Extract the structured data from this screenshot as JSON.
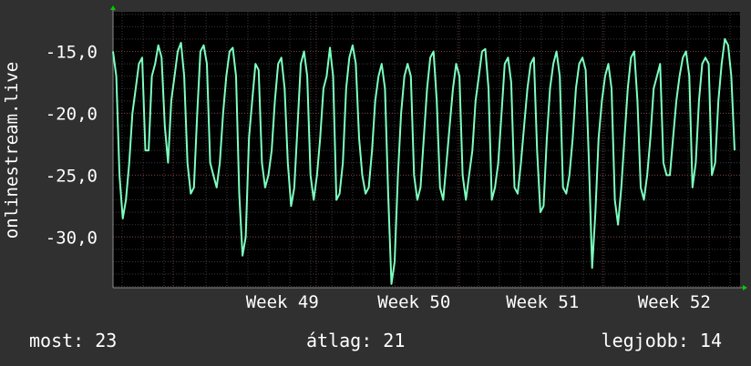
{
  "chart_data": {
    "type": "line",
    "ylabel": "onlinestream.live",
    "ylim": [
      -34.1,
      -11.8
    ],
    "yticks": [
      "-15,0",
      "-20,0",
      "-25,0",
      "-30,0"
    ],
    "ytick_values": [
      -15,
      -20,
      -25,
      -30
    ],
    "x_labels": [
      "Week 49",
      "Week 50",
      "Week 51",
      "Week 52"
    ],
    "x_label_positions": [
      0.27,
      0.48,
      0.685,
      0.895
    ],
    "series": [
      {
        "color": "#7dffbf",
        "values": [
          -15,
          -17,
          -25,
          -28.5,
          -27,
          -24,
          -20,
          -18,
          -16,
          -15.5,
          -23,
          -23,
          -17,
          -16,
          -14.5,
          -15.5,
          -21,
          -24,
          -19,
          -17,
          -15,
          -14.3,
          -17,
          -24,
          -26.5,
          -26,
          -20,
          -15,
          -14.5,
          -16,
          -24,
          -25,
          -26,
          -24,
          -20,
          -17,
          -15,
          -14.7,
          -17,
          -26.5,
          -31.5,
          -30,
          -22,
          -19,
          -16,
          -16.5,
          -24,
          -26,
          -25,
          -23,
          -19,
          -16,
          -15.5,
          -18,
          -24,
          -27.5,
          -26,
          -21,
          -16,
          -15,
          -17,
          -25,
          -27,
          -25,
          -22,
          -18,
          -17,
          -14.7,
          -17,
          -27,
          -26.5,
          -24,
          -18,
          -15.5,
          -14.5,
          -16,
          -22,
          -25,
          -26.5,
          -26,
          -23,
          -19,
          -17,
          -16,
          -18,
          -26.5,
          -33.8,
          -32,
          -25,
          -20,
          -17,
          -16,
          -17,
          -25,
          -27,
          -26,
          -22,
          -18,
          -15.5,
          -15,
          -19,
          -26,
          -27,
          -24,
          -21,
          -18,
          -16,
          -17,
          -25,
          -27,
          -25,
          -23,
          -19,
          -17,
          -15,
          -14.8,
          -18,
          -27,
          -26,
          -24,
          -20,
          -16,
          -15.5,
          -17.5,
          -26,
          -26.5,
          -24,
          -21,
          -18,
          -16,
          -15.5,
          -23,
          -28,
          -27.5,
          -22,
          -18,
          -16,
          -15,
          -17,
          -26,
          -26.5,
          -25,
          -22,
          -18,
          -16,
          -15.5,
          -16.5,
          -24,
          -32.5,
          -28,
          -22,
          -19,
          -17,
          -16,
          -18,
          -27,
          -29,
          -26,
          -22,
          -18,
          -15.5,
          -15,
          -19,
          -26,
          -27,
          -25,
          -22,
          -18,
          -17,
          -16,
          -24,
          -25,
          -25,
          -22,
          -19,
          -17,
          -15.5,
          -15,
          -17,
          -26,
          -24,
          -19,
          -16,
          -15.5,
          -16,
          -25,
          -24,
          -19,
          -16,
          -14,
          -14.5,
          -17,
          -23
        ]
      }
    ]
  },
  "stats": {
    "now": "most: 23",
    "avg": "átlag: 21",
    "best": "legjobb: 14"
  }
}
